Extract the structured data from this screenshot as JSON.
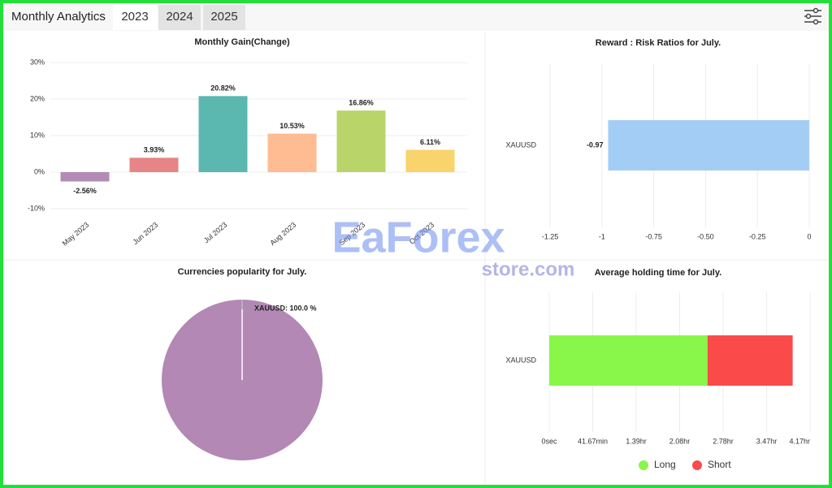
{
  "header": {
    "title": "Monthly Analytics",
    "tabs": [
      "2023",
      "2024",
      "2025"
    ]
  },
  "watermark": [
    "EaForex",
    "store.com"
  ],
  "chart_data": [
    {
      "type": "bar",
      "title": "Monthly Gain(Change)",
      "categories": [
        "May 2023",
        "Jun 2023",
        "Jul 2023",
        "Aug 2023",
        "Sep 2023",
        "Oct 2023"
      ],
      "values": [
        -2.56,
        3.93,
        20.82,
        10.53,
        16.86,
        6.11
      ],
      "value_labels": [
        "-2.56%",
        "3.93%",
        "20.82%",
        "10.53%",
        "16.86%",
        "6.11%"
      ],
      "colors": [
        "#b48bb5",
        "#e58585",
        "#5bb8b0",
        "#ffbb92",
        "#b9d56a",
        "#f9d46c"
      ],
      "ylim": [
        -10,
        30
      ],
      "yticks": [
        {
          "value": -10,
          "label": "-10%"
        },
        {
          "value": 0,
          "label": "0%"
        },
        {
          "value": 10,
          "label": "10%"
        },
        {
          "value": 20,
          "label": "20%"
        },
        {
          "value": 30,
          "label": "30%"
        }
      ],
      "grid": true
    },
    {
      "type": "hbar",
      "title": "Reward : Risk Ratios for July.",
      "categories": [
        "XAUUSD"
      ],
      "values": [
        -0.97
      ],
      "color": "#a3cdf5",
      "xlim": [
        -1.25,
        0
      ],
      "xticks": [
        -1.25,
        -1,
        -0.75,
        {
          "value": -0.5,
          "label": "-0.50"
        },
        -0.25,
        0
      ],
      "grid": true
    },
    {
      "type": "pie",
      "title": "Currencies popularity for July.",
      "categories": [
        "XAUUSD"
      ],
      "values": [
        100
      ],
      "value_labels": [
        "XAUUSD: 100.0 %"
      ],
      "colors": [
        "#b388b5"
      ]
    },
    {
      "type": "stacked_hbar",
      "title": "Average holding time for July.",
      "categories": [
        "XAUUSD"
      ],
      "series": [
        {
          "name": "Long",
          "color": "#88f74a",
          "values": [
            9100
          ]
        },
        {
          "name": "Short",
          "color": "#fa4a4a",
          "values": [
            4900
          ]
        }
      ],
      "xlim": [
        0,
        15000
      ],
      "xticks": [
        {
          "value": 0,
          "label": "0sec"
        },
        {
          "value": 2500,
          "label": "41.67min"
        },
        {
          "value": 5000,
          "label": "1.39hr"
        },
        {
          "value": 7500,
          "label": "2.08hr"
        },
        {
          "value": 10000,
          "label": "2.78hr"
        },
        {
          "value": 12500,
          "label": "3.47hr"
        },
        {
          "value": 15000,
          "label": "4.17hr"
        }
      ],
      "grid": true,
      "legend": "bottom"
    }
  ]
}
